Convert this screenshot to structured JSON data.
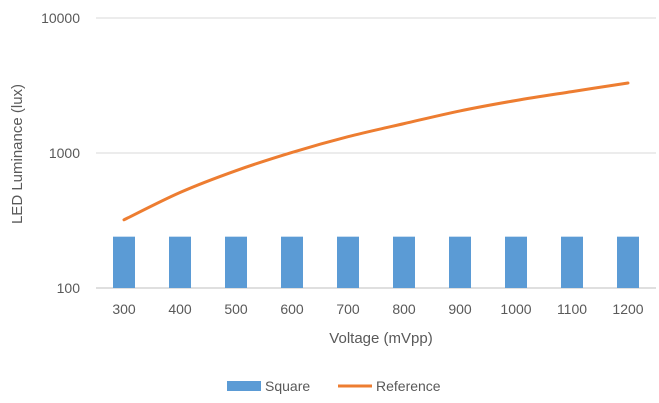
{
  "chart_data": {
    "type": "bar",
    "title": "",
    "xlabel": "Voltage (mVpp)",
    "ylabel": "LED Luminance (lux)",
    "y_scale": "log",
    "ylim": [
      100,
      10000
    ],
    "y_ticks": [
      100,
      1000,
      10000
    ],
    "y_tick_labels": [
      "100",
      "1000",
      "10000"
    ],
    "grid": true,
    "legend_position": "bottom",
    "categories": [
      "300",
      "400",
      "500",
      "600",
      "700",
      "800",
      "900",
      "1000",
      "1100",
      "1200"
    ],
    "series": [
      {
        "name": "Square",
        "type": "bar",
        "color": "#5B9BD5",
        "values": [
          240,
          240,
          240,
          240,
          240,
          240,
          240,
          240,
          240,
          240
        ]
      },
      {
        "name": "Reference",
        "type": "line",
        "color": "#ED7D31",
        "values": [
          320,
          510,
          740,
          1010,
          1320,
          1650,
          2050,
          2450,
          2850,
          3300
        ]
      }
    ]
  }
}
